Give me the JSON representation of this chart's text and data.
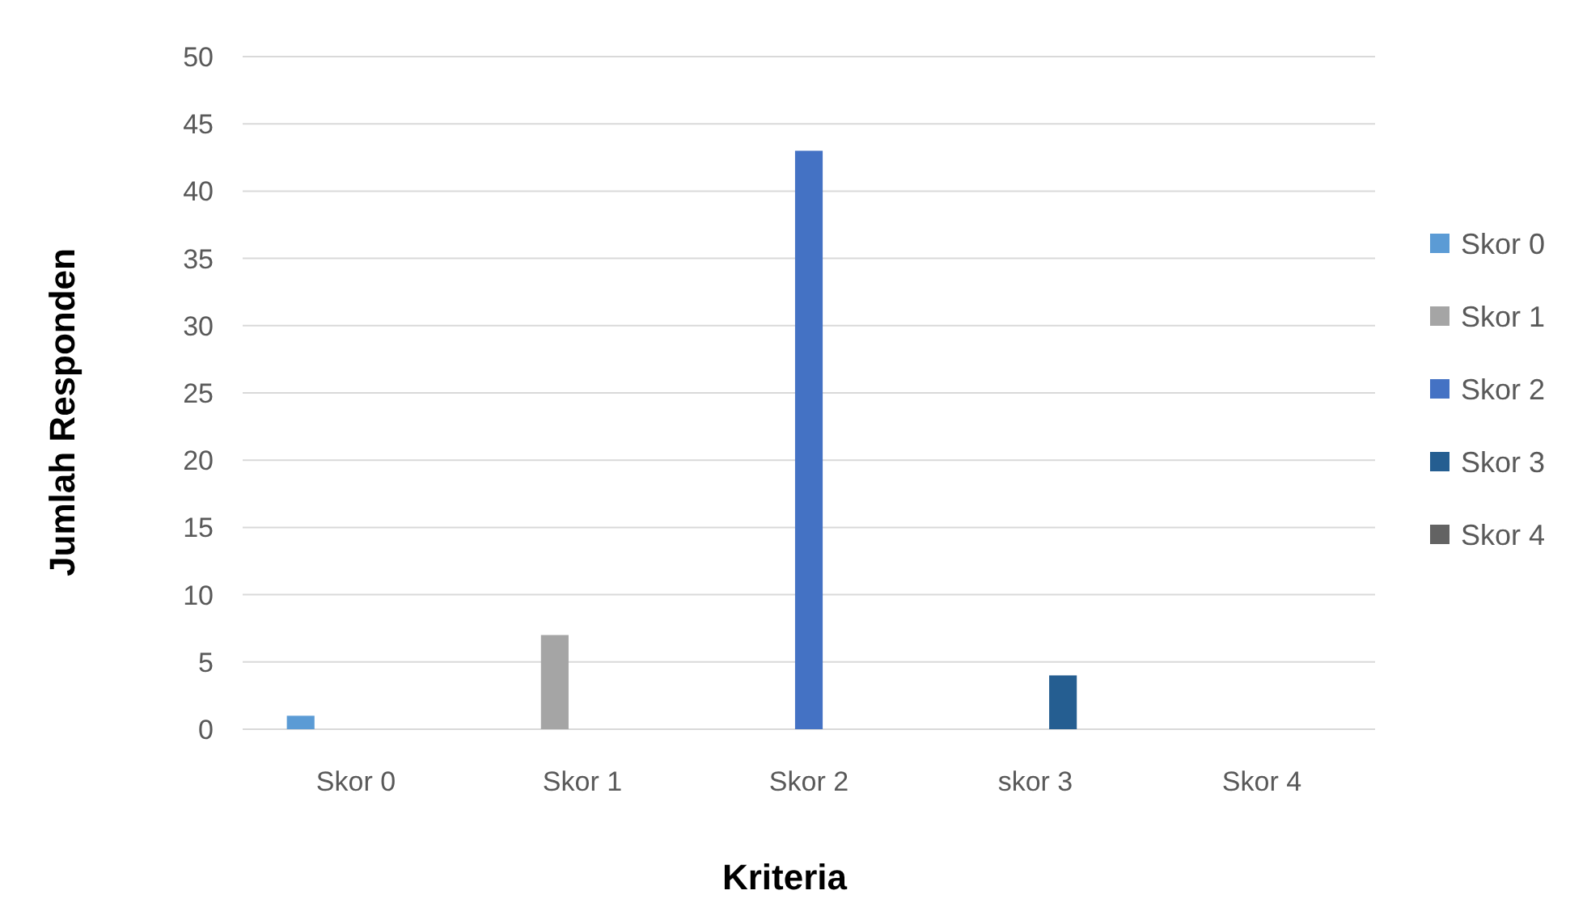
{
  "chart_data": {
    "type": "bar",
    "xlabel": "Kriteria",
    "ylabel": "Jumlah Responden",
    "categories": [
      "Skor 0",
      "Skor 1",
      "Skor 2",
      "skor 3",
      "Skor 4"
    ],
    "series": [
      {
        "name": "Skor 0",
        "color": "#5b9bd5",
        "values": [
          1,
          0,
          0,
          0,
          0
        ]
      },
      {
        "name": "Skor 1",
        "color": "#a5a5a5",
        "values": [
          0,
          7,
          0,
          0,
          0
        ]
      },
      {
        "name": "Skor 2",
        "color": "#4472c4",
        "values": [
          0,
          0,
          43,
          0,
          0
        ]
      },
      {
        "name": "Skor 3",
        "color": "#255e91",
        "values": [
          0,
          0,
          0,
          4,
          0
        ]
      },
      {
        "name": "Skor 4",
        "color": "#636363",
        "values": [
          0,
          0,
          0,
          0,
          0
        ]
      }
    ],
    "ylim": [
      0,
      50
    ],
    "yticks": [
      0,
      5,
      10,
      15,
      20,
      25,
      30,
      35,
      40,
      45,
      50
    ],
    "grid": "y",
    "legend": "right"
  }
}
